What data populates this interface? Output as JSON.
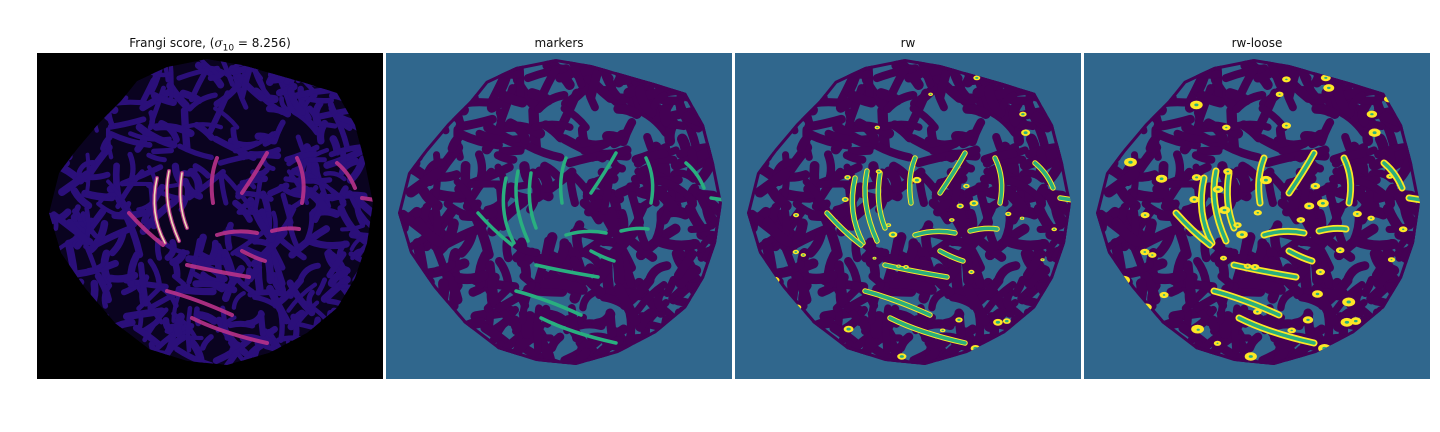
{
  "panels": [
    {
      "key": "frangi",
      "title_prefix": "Frangi score, (",
      "title_symbol": "σ",
      "title_subscript": "10",
      "title_rest": " = 8.256)",
      "colormap": "magma",
      "colors": {
        "background": "#000000",
        "blob": "#2b0f7a",
        "vessel_mid": "#b83289",
        "vessel_hot": "#fcfdbf"
      }
    },
    {
      "key": "markers",
      "title": "markers",
      "colormap": "viridis",
      "colors": {
        "background": "#30678d",
        "blob": "#440154",
        "marker": "#29af7f"
      }
    },
    {
      "key": "rw",
      "title": "rw",
      "colormap": "viridis",
      "colors": {
        "background": "#30678d",
        "blob": "#440154",
        "marker": "#29af7f",
        "rw_label": "#fde725"
      }
    },
    {
      "key": "rw_loose",
      "title": "rw-loose",
      "colormap": "viridis",
      "colors": {
        "background": "#30678d",
        "blob": "#440154",
        "marker": "#29af7f",
        "rw_label": "#fde725"
      }
    }
  ]
}
